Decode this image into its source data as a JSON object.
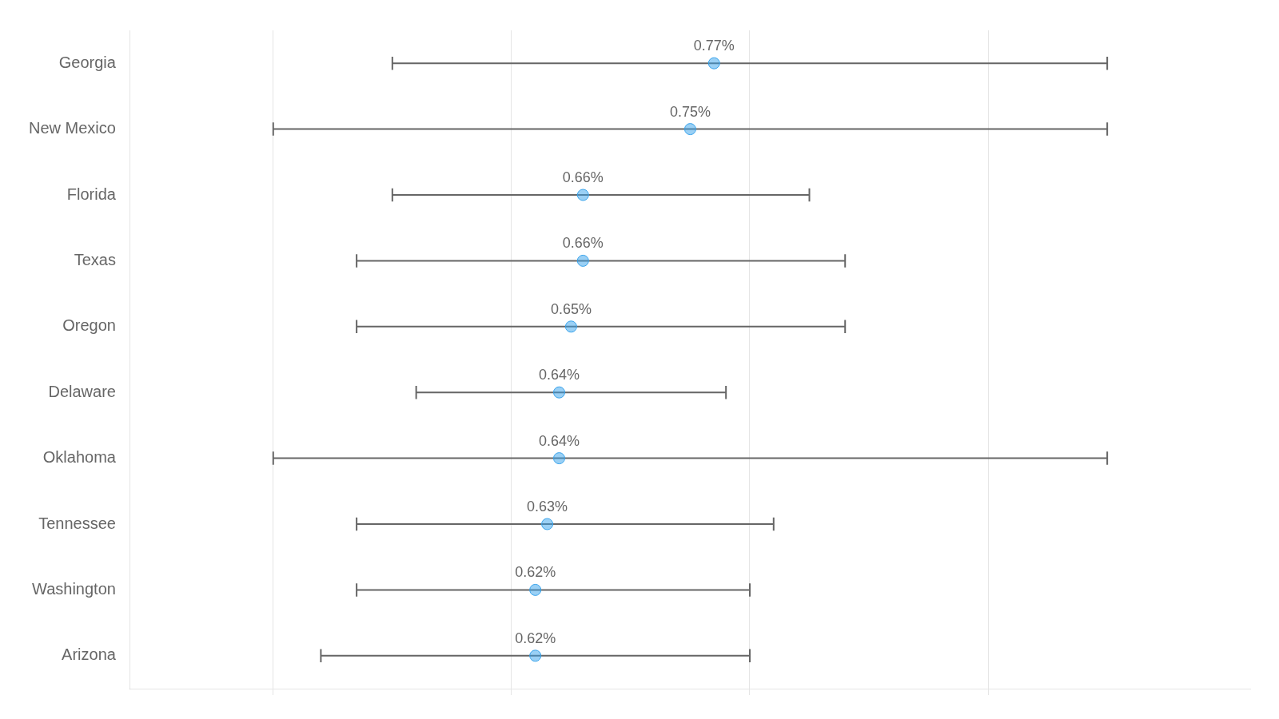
{
  "chart_data": {
    "type": "dot",
    "orientation": "horizontal",
    "categories": [
      "Georgia",
      "New Mexico",
      "Florida",
      "Texas",
      "Oregon",
      "Delaware",
      "Oklahoma",
      "Tennessee",
      "Washington",
      "Arizona"
    ],
    "values": [
      0.77,
      0.75,
      0.66,
      0.66,
      0.65,
      0.64,
      0.64,
      0.63,
      0.62,
      0.62
    ],
    "value_labels": [
      "0.77%",
      "0.75%",
      "0.66%",
      "0.66%",
      "0.65%",
      "0.64%",
      "0.64%",
      "0.63%",
      "0.62%",
      "0.62%"
    ],
    "ci_low": [
      0.5,
      0.4,
      0.5,
      0.47,
      0.47,
      0.52,
      0.4,
      0.47,
      0.47,
      0.44
    ],
    "ci_high": [
      1.1,
      1.1,
      0.85,
      0.88,
      0.88,
      0.78,
      1.1,
      0.82,
      0.8,
      0.8
    ],
    "xlim": [
      0.28,
      1.22
    ],
    "xticks": [
      0.4,
      0.6,
      0.8,
      1.0
    ],
    "grid": true,
    "tick_labels": "y",
    "data_labels": true
  }
}
